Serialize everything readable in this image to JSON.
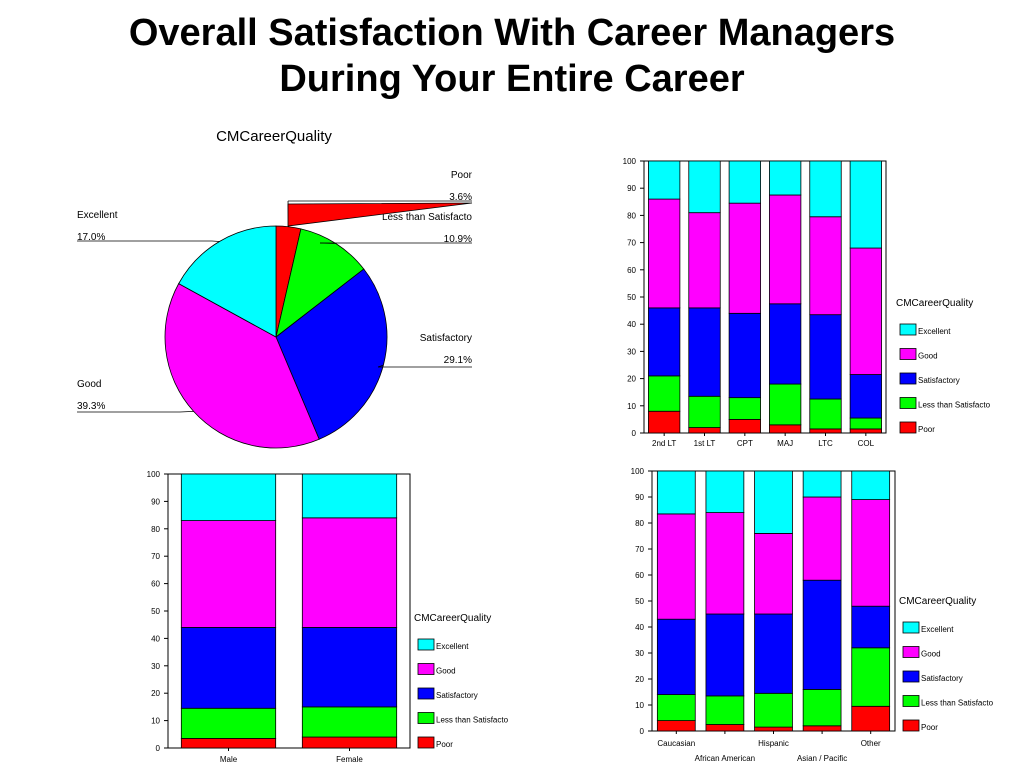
{
  "page_title": {
    "line1": "Overall Satisfaction With Career Managers",
    "line2": "During Your Entire Career"
  },
  "colors": {
    "Excellent": "#00ffff",
    "Good": "#ff00ff",
    "Satisfactory": "#0000ff",
    "Less than Satisfacto": "#00ff00",
    "Poor": "#ff0000"
  },
  "chart_data": [
    {
      "type": "pie",
      "title": "CMCareerQuality",
      "slices": [
        {
          "label": "Poor",
          "value": 3.6,
          "text": "3.6%"
        },
        {
          "label": "Less than Satisfacto",
          "value": 10.9,
          "text": "10.9%"
        },
        {
          "label": "Satisfactory",
          "value": 29.1,
          "text": "29.1%"
        },
        {
          "label": "Good",
          "value": 39.3,
          "text": "39.3%"
        },
        {
          "label": "Excellent",
          "value": 17.0,
          "text": "17.0%"
        }
      ]
    },
    {
      "type": "bar",
      "stacked": true,
      "legend_title": "CMCareerQuality",
      "categories": [
        "2nd LT",
        "1st LT",
        "CPT",
        "MAJ",
        "LTC",
        "COL"
      ],
      "ylim": [
        0,
        100
      ],
      "yticks": [
        0,
        10,
        20,
        30,
        40,
        50,
        60,
        70,
        80,
        90,
        100
      ],
      "series": [
        {
          "name": "Poor",
          "values": [
            8,
            2,
            5,
            3,
            1.5,
            1.5
          ]
        },
        {
          "name": "Less than Satisfacto",
          "values": [
            13,
            11.5,
            8,
            15,
            11,
            4
          ]
        },
        {
          "name": "Satisfactory",
          "values": [
            25,
            32.5,
            31,
            29.5,
            31,
            16
          ]
        },
        {
          "name": "Good",
          "values": [
            40,
            35,
            40.5,
            40,
            36,
            46.5
          ]
        },
        {
          "name": "Excellent",
          "values": [
            14,
            19,
            15.5,
            12.5,
            20.5,
            32
          ]
        }
      ]
    },
    {
      "type": "bar",
      "stacked": true,
      "legend_title": "CMCareerQuality",
      "categories": [
        "Male",
        "Female"
      ],
      "ylim": [
        0,
        100
      ],
      "yticks": [
        0,
        10,
        20,
        30,
        40,
        50,
        60,
        70,
        80,
        90,
        100
      ],
      "series": [
        {
          "name": "Poor",
          "values": [
            3.5,
            4
          ]
        },
        {
          "name": "Less than Satisfacto",
          "values": [
            11,
            11
          ]
        },
        {
          "name": "Satisfactory",
          "values": [
            29.5,
            29
          ]
        },
        {
          "name": "Good",
          "values": [
            39,
            40
          ]
        },
        {
          "name": "Excellent",
          "values": [
            17,
            16
          ]
        }
      ]
    },
    {
      "type": "bar",
      "stacked": true,
      "legend_title": "CMCareerQuality",
      "categories": [
        "Caucasian",
        "African American",
        "Hispanic",
        "Asian / Pacific",
        "Other"
      ],
      "ylim": [
        0,
        100
      ],
      "yticks": [
        0,
        10,
        20,
        30,
        40,
        50,
        60,
        70,
        80,
        90,
        100
      ],
      "series": [
        {
          "name": "Poor",
          "values": [
            4,
            2.5,
            1.5,
            2,
            9.5
          ]
        },
        {
          "name": "Less than Satisfacto",
          "values": [
            10,
            11,
            13,
            14,
            22.5
          ]
        },
        {
          "name": "Satisfactory",
          "values": [
            29,
            31.5,
            30.5,
            42,
            16
          ]
        },
        {
          "name": "Good",
          "values": [
            40.5,
            39,
            31,
            32,
            41
          ]
        },
        {
          "name": "Excellent",
          "values": [
            16.5,
            16,
            24,
            10,
            11
          ]
        }
      ]
    }
  ]
}
